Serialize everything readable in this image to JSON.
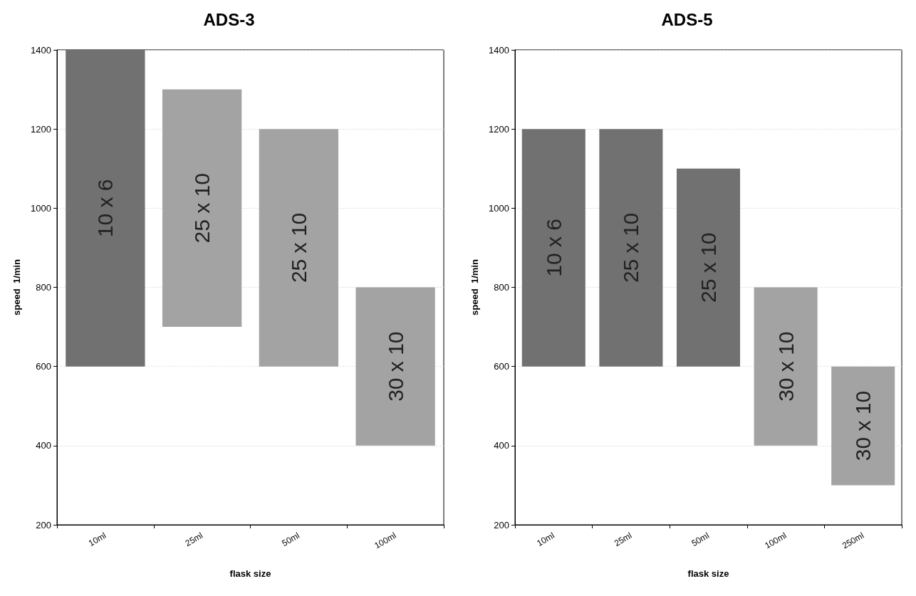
{
  "chart_data": [
    {
      "type": "bar",
      "title": "ADS-3",
      "xlabel": "flask size",
      "ylabel": "speed  1/min",
      "categories": [
        "10ml",
        "25ml",
        "50ml",
        "100ml"
      ],
      "base": [
        600,
        700,
        600,
        400
      ],
      "values": [
        800,
        600,
        600,
        400
      ],
      "colors": [
        "#717171",
        "#a3a3a3",
        "#a3a3a3",
        "#a3a3a3"
      ],
      "ylim": [
        200,
        1400
      ],
      "yticks": [
        200,
        400,
        600,
        800,
        1000,
        1200,
        1400
      ],
      "grid": "y",
      "annotations": [
        "10 x 6",
        "25 x 10",
        "25 x 10",
        "30 x 10"
      ]
    },
    {
      "type": "bar",
      "title": "ADS-5",
      "xlabel": "flask size",
      "ylabel": "speed  1/min",
      "categories": [
        "10ml",
        "25ml",
        "50ml",
        "100ml",
        "250ml"
      ],
      "base": [
        600,
        600,
        600,
        400,
        300
      ],
      "values": [
        600,
        600,
        500,
        400,
        300
      ],
      "colors": [
        "#717171",
        "#717171",
        "#717171",
        "#a3a3a3",
        "#a3a3a3"
      ],
      "ylim": [
        200,
        1400
      ],
      "yticks": [
        200,
        400,
        600,
        800,
        1000,
        1200,
        1400
      ],
      "grid": "y",
      "annotations": [
        "10 x 6",
        "25 x 10",
        "25 x 10",
        "30 x 10",
        "30 x 10"
      ]
    }
  ]
}
